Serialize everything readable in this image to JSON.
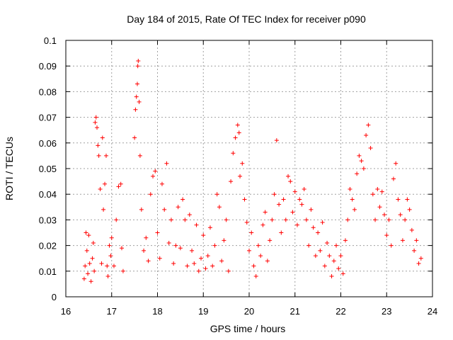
{
  "chart_data": {
    "type": "scatter",
    "title": "Day 184 of 2015, Rate Of TEC Index for receiver p090",
    "xlabel": "GPS time / hours",
    "ylabel": "ROTI / TECUs",
    "xlim": [
      16,
      24
    ],
    "ylim": [
      0,
      0.1
    ],
    "xticks": [
      "16",
      "17",
      "18",
      "19",
      "20",
      "21",
      "22",
      "23",
      "24"
    ],
    "yticks": [
      "0",
      "0.01",
      "0.02",
      "0.03",
      "0.04",
      "0.05",
      "0.06",
      "0.07",
      "0.08",
      "0.09",
      "0.1"
    ],
    "grid": true,
    "marker": "+",
    "color": "#ff0000",
    "series": [
      {
        "name": "ROTI",
        "points": [
          [
            16.4,
            0.007
          ],
          [
            16.42,
            0.012
          ],
          [
            16.44,
            0.025
          ],
          [
            16.46,
            0.018
          ],
          [
            16.48,
            0.009
          ],
          [
            16.5,
            0.024
          ],
          [
            16.52,
            0.013
          ],
          [
            16.55,
            0.006
          ],
          [
            16.58,
            0.015
          ],
          [
            16.6,
            0.021
          ],
          [
            16.62,
            0.01
          ],
          [
            16.64,
            0.068
          ],
          [
            16.66,
            0.07
          ],
          [
            16.68,
            0.066
          ],
          [
            16.7,
            0.059
          ],
          [
            16.72,
            0.055
          ],
          [
            16.75,
            0.042
          ],
          [
            16.78,
            0.013
          ],
          [
            16.8,
            0.062
          ],
          [
            16.82,
            0.034
          ],
          [
            16.85,
            0.044
          ],
          [
            16.88,
            0.055
          ],
          [
            16.9,
            0.012
          ],
          [
            16.92,
            0.008
          ],
          [
            16.95,
            0.02
          ],
          [
            16.98,
            0.016
          ],
          [
            17.0,
            0.023
          ],
          [
            17.05,
            0.012
          ],
          [
            17.1,
            0.03
          ],
          [
            17.15,
            0.043
          ],
          [
            17.2,
            0.044
          ],
          [
            17.22,
            0.019
          ],
          [
            17.25,
            0.01
          ],
          [
            17.5,
            0.062
          ],
          [
            17.52,
            0.073
          ],
          [
            17.54,
            0.078
          ],
          [
            17.56,
            0.083
          ],
          [
            17.57,
            0.09
          ],
          [
            17.58,
            0.092
          ],
          [
            17.6,
            0.076
          ],
          [
            17.62,
            0.055
          ],
          [
            17.65,
            0.034
          ],
          [
            17.7,
            0.018
          ],
          [
            17.75,
            0.023
          ],
          [
            17.8,
            0.014
          ],
          [
            17.85,
            0.04
          ],
          [
            17.9,
            0.047
          ],
          [
            17.95,
            0.049
          ],
          [
            18.0,
            0.025
          ],
          [
            18.05,
            0.015
          ],
          [
            18.1,
            0.044
          ],
          [
            18.15,
            0.034
          ],
          [
            18.2,
            0.052
          ],
          [
            18.25,
            0.021
          ],
          [
            18.3,
            0.03
          ],
          [
            18.35,
            0.013
          ],
          [
            18.4,
            0.02
          ],
          [
            18.45,
            0.035
          ],
          [
            18.5,
            0.019
          ],
          [
            18.55,
            0.038
          ],
          [
            18.6,
            0.03
          ],
          [
            18.65,
            0.012
          ],
          [
            18.7,
            0.032
          ],
          [
            18.75,
            0.018
          ],
          [
            18.8,
            0.013
          ],
          [
            18.85,
            0.028
          ],
          [
            18.9,
            0.01
          ],
          [
            18.95,
            0.015
          ],
          [
            19.0,
            0.024
          ],
          [
            19.05,
            0.011
          ],
          [
            19.1,
            0.016
          ],
          [
            19.15,
            0.027
          ],
          [
            19.2,
            0.012
          ],
          [
            19.25,
            0.02
          ],
          [
            19.3,
            0.04
          ],
          [
            19.35,
            0.035
          ],
          [
            19.4,
            0.014
          ],
          [
            19.45,
            0.022
          ],
          [
            19.5,
            0.03
          ],
          [
            19.55,
            0.01
          ],
          [
            19.6,
            0.045
          ],
          [
            19.65,
            0.056
          ],
          [
            19.7,
            0.062
          ],
          [
            19.75,
            0.067
          ],
          [
            19.78,
            0.064
          ],
          [
            19.8,
            0.047
          ],
          [
            19.85,
            0.052
          ],
          [
            19.9,
            0.038
          ],
          [
            19.95,
            0.029
          ],
          [
            20.0,
            0.018
          ],
          [
            20.05,
            0.025
          ],
          [
            20.1,
            0.012
          ],
          [
            20.15,
            0.008
          ],
          [
            20.2,
            0.02
          ],
          [
            20.25,
            0.016
          ],
          [
            20.3,
            0.028
          ],
          [
            20.35,
            0.033
          ],
          [
            20.4,
            0.014
          ],
          [
            20.45,
            0.022
          ],
          [
            20.5,
            0.03
          ],
          [
            20.55,
            0.04
          ],
          [
            20.6,
            0.061
          ],
          [
            20.65,
            0.036
          ],
          [
            20.7,
            0.025
          ],
          [
            20.75,
            0.038
          ],
          [
            20.8,
            0.03
          ],
          [
            20.85,
            0.047
          ],
          [
            20.9,
            0.045
          ],
          [
            20.95,
            0.033
          ],
          [
            21.0,
            0.041
          ],
          [
            21.05,
            0.028
          ],
          [
            21.1,
            0.038
          ],
          [
            21.15,
            0.036
          ],
          [
            21.2,
            0.042
          ],
          [
            21.25,
            0.03
          ],
          [
            21.3,
            0.02
          ],
          [
            21.35,
            0.034
          ],
          [
            21.4,
            0.027
          ],
          [
            21.45,
            0.016
          ],
          [
            21.5,
            0.025
          ],
          [
            21.55,
            0.018
          ],
          [
            21.6,
            0.029
          ],
          [
            21.65,
            0.012
          ],
          [
            21.7,
            0.021
          ],
          [
            21.75,
            0.016
          ],
          [
            21.8,
            0.008
          ],
          [
            21.85,
            0.014
          ],
          [
            21.9,
            0.02
          ],
          [
            21.95,
            0.011
          ],
          [
            22.0,
            0.016
          ],
          [
            22.05,
            0.009
          ],
          [
            22.1,
            0.022
          ],
          [
            22.15,
            0.03
          ],
          [
            22.2,
            0.042
          ],
          [
            22.25,
            0.038
          ],
          [
            22.3,
            0.034
          ],
          [
            22.35,
            0.048
          ],
          [
            22.4,
            0.055
          ],
          [
            22.45,
            0.053
          ],
          [
            22.5,
            0.05
          ],
          [
            22.55,
            0.063
          ],
          [
            22.6,
            0.067
          ],
          [
            22.65,
            0.058
          ],
          [
            22.7,
            0.04
          ],
          [
            22.75,
            0.03
          ],
          [
            22.8,
            0.042
          ],
          [
            22.85,
            0.035
          ],
          [
            22.9,
            0.041
          ],
          [
            22.95,
            0.032
          ],
          [
            23.0,
            0.024
          ],
          [
            23.05,
            0.03
          ],
          [
            23.1,
            0.02
          ],
          [
            23.15,
            0.046
          ],
          [
            23.2,
            0.052
          ],
          [
            23.25,
            0.038
          ],
          [
            23.3,
            0.032
          ],
          [
            23.35,
            0.022
          ],
          [
            23.4,
            0.03
          ],
          [
            23.45,
            0.038
          ],
          [
            23.5,
            0.034
          ],
          [
            23.55,
            0.026
          ],
          [
            23.6,
            0.018
          ],
          [
            23.65,
            0.022
          ],
          [
            23.7,
            0.013
          ],
          [
            23.75,
            0.015
          ]
        ]
      }
    ]
  }
}
